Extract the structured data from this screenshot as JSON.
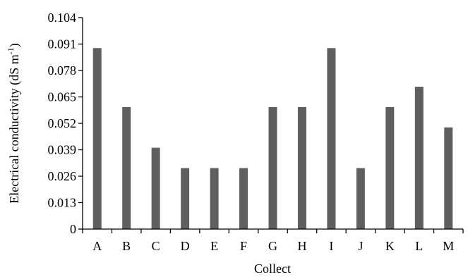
{
  "chart_data": {
    "type": "bar",
    "categories": [
      "A",
      "B",
      "C",
      "D",
      "E",
      "F",
      "G",
      "H",
      "I",
      "J",
      "K",
      "L",
      "M"
    ],
    "values": [
      0.089,
      0.06,
      0.04,
      0.03,
      0.03,
      0.03,
      0.06,
      0.06,
      0.089,
      0.03,
      0.06,
      0.07,
      0.05
    ],
    "y_ticks": [
      "0",
      "0.013",
      "0.026",
      "0.039",
      "0.052",
      "0.065",
      "0.078",
      "0.091",
      "0.104"
    ],
    "ylim": [
      0,
      0.104
    ],
    "xlabel": "Collect",
    "ylabel": "Electrical conductivity (dS m",
    "ylabel_sup": "-1",
    "ylabel_close": ")",
    "bar_color": "#5f5f5f",
    "grid": false,
    "legend": "none"
  }
}
